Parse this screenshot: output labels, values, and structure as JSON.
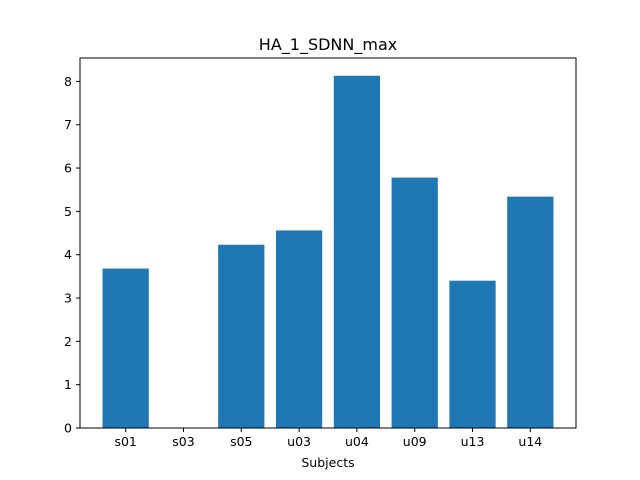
{
  "chart_data": {
    "type": "bar",
    "title": "HA_1_SDNN_max",
    "xlabel": "Subjects",
    "ylabel": "",
    "categories": [
      "s01",
      "s03",
      "s05",
      "u03",
      "u04",
      "u09",
      "u13",
      "u14"
    ],
    "values": [
      3.68,
      0,
      4.23,
      4.56,
      8.13,
      5.78,
      3.4,
      5.34
    ],
    "ylim": [
      0,
      8.54
    ],
    "yticks": [
      0,
      1,
      2,
      3,
      4,
      5,
      6,
      7,
      8
    ],
    "bar_color": "#1f77b4",
    "grid": false,
    "legend": "none"
  }
}
